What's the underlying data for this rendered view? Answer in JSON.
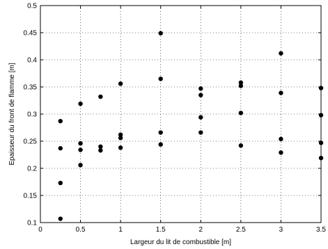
{
  "chart_data": {
    "type": "scatter",
    "xlabel": "Largeur du lit de combustible [m]",
    "ylabel": "Epaisseur du front de flamme [m]",
    "xlim": [
      0,
      3.5
    ],
    "ylim": [
      0.1,
      0.5
    ],
    "grid": true,
    "marker_color": "#000000",
    "x_ticks": [
      "0",
      "0.5",
      "1",
      "1.5",
      "2",
      "2.5",
      "3",
      "3.5"
    ],
    "y_ticks": [
      "0.1",
      "0.15",
      "0.2",
      "0.25",
      "0.3",
      "0.35",
      "0.4",
      "0.45",
      "0.5"
    ],
    "series": [
      {
        "points": [
          {
            "x": 0.25,
            "y": 0.107
          },
          {
            "x": 0.25,
            "y": 0.173
          },
          {
            "x": 0.25,
            "y": 0.237
          },
          {
            "x": 0.25,
            "y": 0.287
          },
          {
            "x": 0.5,
            "y": 0.206
          },
          {
            "x": 0.5,
            "y": 0.234
          },
          {
            "x": 0.5,
            "y": 0.246
          },
          {
            "x": 0.5,
            "y": 0.319
          },
          {
            "x": 0.75,
            "y": 0.233
          },
          {
            "x": 0.75,
            "y": 0.24
          },
          {
            "x": 0.75,
            "y": 0.332
          },
          {
            "x": 1.0,
            "y": 0.238
          },
          {
            "x": 1.0,
            "y": 0.256
          },
          {
            "x": 1.0,
            "y": 0.262
          },
          {
            "x": 1.0,
            "y": 0.356
          },
          {
            "x": 1.5,
            "y": 0.244
          },
          {
            "x": 1.5,
            "y": 0.266
          },
          {
            "x": 1.5,
            "y": 0.365
          },
          {
            "x": 1.5,
            "y": 0.449
          },
          {
            "x": 2.0,
            "y": 0.266
          },
          {
            "x": 2.0,
            "y": 0.294
          },
          {
            "x": 2.0,
            "y": 0.335
          },
          {
            "x": 2.0,
            "y": 0.347
          },
          {
            "x": 2.5,
            "y": 0.242
          },
          {
            "x": 2.5,
            "y": 0.302
          },
          {
            "x": 2.5,
            "y": 0.352
          },
          {
            "x": 2.5,
            "y": 0.358
          },
          {
            "x": 3.0,
            "y": 0.229
          },
          {
            "x": 3.0,
            "y": 0.254
          },
          {
            "x": 3.0,
            "y": 0.339
          },
          {
            "x": 3.0,
            "y": 0.412
          },
          {
            "x": 3.5,
            "y": 0.219
          },
          {
            "x": 3.5,
            "y": 0.247
          },
          {
            "x": 3.5,
            "y": 0.298
          },
          {
            "x": 3.5,
            "y": 0.348
          }
        ]
      }
    ]
  }
}
